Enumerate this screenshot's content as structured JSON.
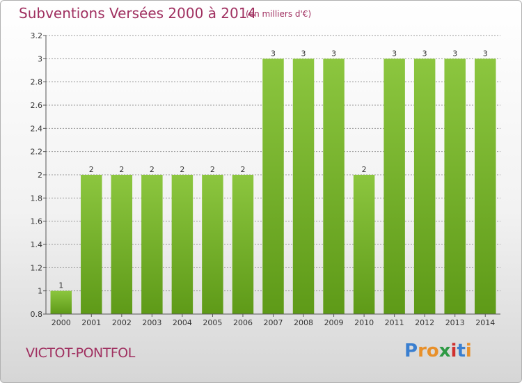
{
  "header": {
    "title": "Subventions Versées 2000 à 2014",
    "subtitle": "(en milliers d'€)"
  },
  "footer": {
    "commune": "VICTOT-PONTFOL",
    "logo_letters": [
      "P",
      "r",
      "o",
      "x",
      "i",
      "t",
      "i"
    ],
    "logo_colors": [
      "#3a7fd0",
      "#e8902a",
      "#e8902a",
      "#2e9a44",
      "#d0302e",
      "#3a7fd0",
      "#e8902a"
    ]
  },
  "colors": {
    "bar": "#8cc63f",
    "bar_dark": "#5e9a18",
    "grid": "#999999",
    "title": "#a03060"
  },
  "chart_data": {
    "type": "bar",
    "title": "Subventions Versées 2000 à 2014",
    "subtitle": "(en milliers d'€)",
    "xlabel": "",
    "ylabel": "",
    "categories": [
      "2000",
      "2001",
      "2002",
      "2003",
      "2004",
      "2005",
      "2006",
      "2007",
      "2008",
      "2009",
      "2010",
      "2011",
      "2012",
      "2013",
      "2014"
    ],
    "values": [
      1,
      2,
      2,
      2,
      2,
      2,
      2,
      3,
      3,
      3,
      2,
      3,
      3,
      3,
      3
    ],
    "value_labels": [
      "1",
      "2",
      "2",
      "2",
      "2",
      "2",
      "2",
      "3",
      "3",
      "3",
      "2",
      "3",
      "3",
      "3",
      "3"
    ],
    "ylim": [
      0.8,
      3.2
    ],
    "yticks": [
      0.8,
      1,
      1.2,
      1.4,
      1.6,
      1.8,
      2,
      2.2,
      2.4,
      2.6,
      2.8,
      3,
      3.2
    ],
    "ytick_labels": [
      "0.8",
      "1",
      "1.2",
      "1.4",
      "1.6",
      "1.8",
      "2",
      "2.2",
      "2.4",
      "2.6",
      "2.8",
      "3",
      "3.2"
    ],
    "grid": true,
    "legend": "none"
  }
}
